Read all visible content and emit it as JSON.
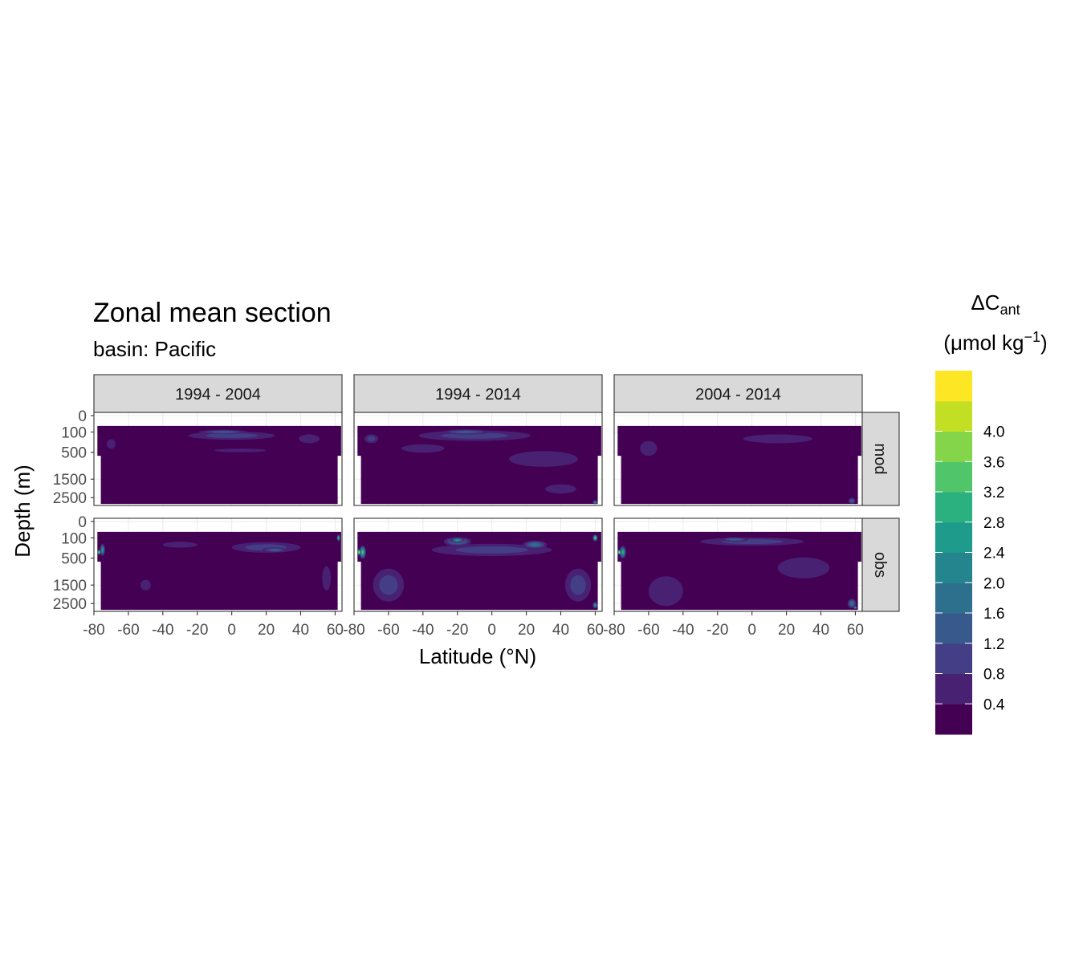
{
  "chart_data": {
    "type": "heatmap",
    "title": "Zonal mean section",
    "subtitle": "basin: Pacific",
    "xlabel": "Latitude (°N)",
    "ylabel": "Depth (m)",
    "xlim": [
      -80,
      64
    ],
    "x_ticks": [
      "-80",
      "-60",
      "-40",
      "-20",
      "0",
      "20",
      "40",
      "60"
    ],
    "y_ticks": [
      "0",
      "100",
      "500",
      "1500",
      "2500"
    ],
    "y_scale": "sqrt",
    "ylim": [
      0,
      3000
    ],
    "columns": [
      "1994 - 2004",
      "1994 - 2014",
      "2004 - 2014"
    ],
    "rows": [
      "mod",
      "obs"
    ],
    "legend": {
      "title_main": "ΔC",
      "title_sub": "ant",
      "unit_main": "(μmol kg",
      "unit_sup": "−1",
      "unit_close": ")",
      "placement": "right",
      "breaks": [
        "4.0",
        "3.6",
        "3.2",
        "2.8",
        "2.4",
        "2.0",
        "1.6",
        "1.2",
        "0.8",
        "0.4"
      ],
      "colors": [
        "#440154",
        "#482173",
        "#433E85",
        "#38598C",
        "#2D708E",
        "#25858E",
        "#1E9B8A",
        "#2BB07F",
        "#51C56A",
        "#85D54A",
        "#C2DF23",
        "#FDE725"
      ]
    },
    "panels": [
      {
        "row": "mod",
        "column": "1994 - 2004",
        "features": [
          {
            "lat": 0,
            "depth": 150,
            "w": 50,
            "h": 120,
            "level": 2
          },
          {
            "lat": -5,
            "depth": 100,
            "w": 28,
            "h": 50,
            "level": 3
          },
          {
            "lat": 5,
            "depth": 450,
            "w": 30,
            "h": 90,
            "level": 1
          },
          {
            "lat": -70,
            "depth": 300,
            "w": 5,
            "h": 200,
            "level": 1
          },
          {
            "lat": 45,
            "depth": 200,
            "w": 12,
            "h": 150,
            "level": 1
          }
        ]
      },
      {
        "row": "mod",
        "column": "1994 - 2014",
        "features": [
          {
            "lat": -10,
            "depth": 150,
            "w": 65,
            "h": 150,
            "level": 2
          },
          {
            "lat": -15,
            "depth": 100,
            "w": 28,
            "h": 60,
            "level": 3
          },
          {
            "lat": -40,
            "depth": 400,
            "w": 25,
            "h": 200,
            "level": 1
          },
          {
            "lat": 30,
            "depth": 700,
            "w": 40,
            "h": 500,
            "level": 1
          },
          {
            "lat": -70,
            "depth": 200,
            "w": 8,
            "h": 150,
            "level": 2
          },
          {
            "lat": 40,
            "depth": 2000,
            "w": 18,
            "h": 500,
            "level": 1
          },
          {
            "lat": 60,
            "depth": 2800,
            "w": 3,
            "h": 300,
            "level": 4
          }
        ]
      },
      {
        "row": "mod",
        "column": "2004 - 2014",
        "features": [
          {
            "lat": -60,
            "depth": 400,
            "w": 10,
            "h": 350,
            "level": 1
          },
          {
            "lat": 15,
            "depth": 200,
            "w": 40,
            "h": 150,
            "level": 1
          },
          {
            "lat": 58,
            "depth": 2700,
            "w": 4,
            "h": 400,
            "level": 3
          }
        ]
      },
      {
        "row": "obs",
        "column": "1994 - 2004",
        "features": [
          {
            "lat": 20,
            "depth": 250,
            "w": 40,
            "h": 200,
            "level": 2
          },
          {
            "lat": 25,
            "depth": 300,
            "w": 15,
            "h": 100,
            "level": 3
          },
          {
            "lat": -30,
            "depth": 200,
            "w": 20,
            "h": 100,
            "level": 1
          },
          {
            "lat": -75,
            "depth": 300,
            "w": 3,
            "h": 250,
            "level": 6
          },
          {
            "lat": -77,
            "depth": 350,
            "w": 2,
            "h": 120,
            "level": 10
          },
          {
            "lat": -50,
            "depth": 1500,
            "w": 6,
            "h": 500,
            "level": 1
          },
          {
            "lat": 55,
            "depth": 1200,
            "w": 5,
            "h": 1000,
            "level": 1
          },
          {
            "lat": 62,
            "depth": 100,
            "w": 2,
            "h": 80,
            "level": 8
          }
        ]
      },
      {
        "row": "obs",
        "column": "1994 - 2014",
        "features": [
          {
            "lat": -20,
            "depth": 150,
            "w": 16,
            "h": 130,
            "level": 4
          },
          {
            "lat": -20,
            "depth": 130,
            "w": 8,
            "h": 70,
            "level": 6
          },
          {
            "lat": 25,
            "depth": 200,
            "w": 14,
            "h": 140,
            "level": 4
          },
          {
            "lat": 0,
            "depth": 300,
            "w": 70,
            "h": 250,
            "level": 2
          },
          {
            "lat": -60,
            "depth": 1500,
            "w": 18,
            "h": 1500,
            "level": 2
          },
          {
            "lat": -75,
            "depth": 350,
            "w": 4,
            "h": 300,
            "level": 8
          },
          {
            "lat": -77,
            "depth": 350,
            "w": 2,
            "h": 150,
            "level": 11
          },
          {
            "lat": 50,
            "depth": 1500,
            "w": 15,
            "h": 1500,
            "level": 2
          },
          {
            "lat": 60,
            "depth": 2600,
            "w": 3,
            "h": 400,
            "level": 6
          },
          {
            "lat": 60,
            "depth": 100,
            "w": 3,
            "h": 80,
            "level": 9
          }
        ]
      },
      {
        "row": "obs",
        "column": "2004 - 2014",
        "features": [
          {
            "lat": 0,
            "depth": 150,
            "w": 60,
            "h": 120,
            "level": 2
          },
          {
            "lat": -10,
            "depth": 120,
            "w": 16,
            "h": 60,
            "level": 3
          },
          {
            "lat": -75,
            "depth": 350,
            "w": 4,
            "h": 280,
            "level": 7
          },
          {
            "lat": -77,
            "depth": 350,
            "w": 2,
            "h": 120,
            "level": 11
          },
          {
            "lat": -50,
            "depth": 1800,
            "w": 20,
            "h": 1500,
            "level": 1
          },
          {
            "lat": 30,
            "depth": 800,
            "w": 30,
            "h": 700,
            "level": 1
          },
          {
            "lat": 58,
            "depth": 2500,
            "w": 5,
            "h": 600,
            "level": 4
          },
          {
            "lat": 60,
            "depth": 2750,
            "w": 2,
            "h": 200,
            "level": 7
          }
        ]
      }
    ]
  }
}
